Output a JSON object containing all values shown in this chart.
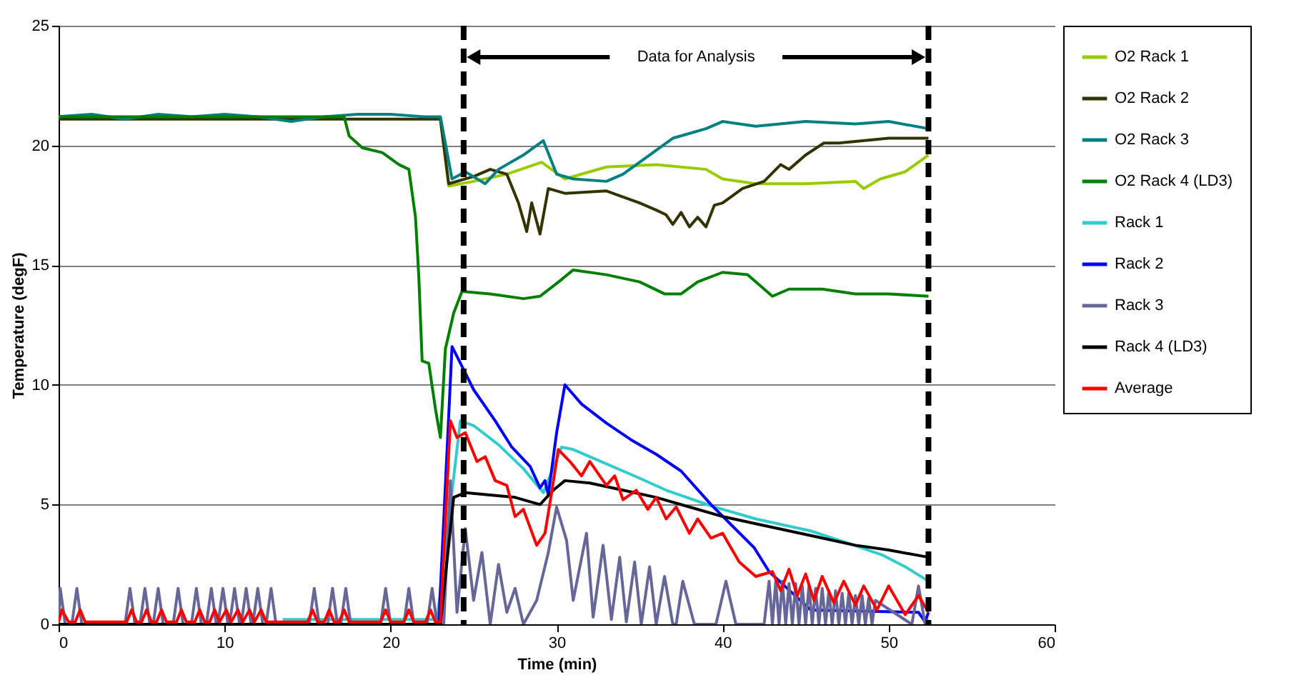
{
  "chart_data": {
    "type": "line",
    "xlabel": "Time (min)",
    "ylabel": "Temperature (degF)",
    "xlim": [
      0,
      60
    ],
    "xticks": [
      0,
      10,
      20,
      30,
      40,
      50,
      60
    ],
    "ylim": [
      0,
      25
    ],
    "yticks": [
      0,
      5,
      10,
      15,
      20,
      25
    ],
    "grid": "y",
    "legend": "right",
    "annotations": [
      "Data for Analysis"
    ],
    "ref_lines": [
      {
        "axis": "x",
        "value": 24.4,
        "color": "#000000",
        "line_style": "dashed"
      },
      {
        "axis": "x",
        "value": 52.4,
        "color": "#000000",
        "line_style": "dashed"
      }
    ],
    "series": [
      {
        "name": "O2 Rack 1",
        "color": "#99cc00",
        "x": [
          23,
          23.5,
          25,
          27,
          29.1,
          30.5,
          33,
          36,
          39,
          40,
          42,
          45,
          48,
          48.5,
          49.5,
          51,
          52.4
        ],
        "values": [
          21.1,
          18.3,
          18.5,
          18.8,
          19.3,
          18.6,
          19.1,
          19.2,
          19.0,
          18.6,
          18.4,
          18.4,
          18.5,
          18.2,
          18.6,
          18.9,
          19.6
        ]
      },
      {
        "name": "O2 Rack 2",
        "color": "#333300",
        "x": [
          0,
          5,
          10,
          15,
          20,
          23,
          23.5,
          25,
          26,
          27,
          27.7,
          28.2,
          28.5,
          29,
          29.5,
          30.5,
          33,
          35,
          36,
          36.6,
          37,
          37.5,
          38,
          38.5,
          39,
          39.5,
          40,
          41.2,
          42.5,
          43.5,
          44,
          45,
          46.1,
          47,
          50,
          52.4
        ],
        "values": [
          21.1,
          21.1,
          21.1,
          21.1,
          21.1,
          21.1,
          18.4,
          18.7,
          19.0,
          18.8,
          17.6,
          16.4,
          17.6,
          16.3,
          18.2,
          18.0,
          18.1,
          17.6,
          17.3,
          17.1,
          16.7,
          17.2,
          16.6,
          17.0,
          16.6,
          17.5,
          17.6,
          18.2,
          18.5,
          19.2,
          19.0,
          19.6,
          20.1,
          20.1,
          20.3,
          20.3
        ]
      },
      {
        "name": "O2 Rack 3",
        "color": "#008080",
        "x": [
          0,
          2,
          4,
          6,
          8,
          10,
          12,
          14,
          16,
          18,
          20,
          22,
          23,
          23.7,
          24.5,
          25.7,
          26.5,
          28,
          29.2,
          30,
          31,
          33,
          34,
          36,
          37,
          39,
          40,
          42,
          45,
          48,
          50,
          52.4
        ],
        "values": [
          21.2,
          21.3,
          21.1,
          21.3,
          21.2,
          21.3,
          21.2,
          21.0,
          21.2,
          21.3,
          21.3,
          21.2,
          21.2,
          18.6,
          18.9,
          18.4,
          19.0,
          19.6,
          20.2,
          18.8,
          18.6,
          18.5,
          18.8,
          19.8,
          20.3,
          20.7,
          21.0,
          20.8,
          21.0,
          20.9,
          21.0,
          20.7
        ]
      },
      {
        "name": "O2 Rack 4 (LD3)",
        "color": "#008000",
        "x": [
          0,
          5,
          10,
          15,
          17.2,
          17.5,
          18.3,
          19.5,
          20.5,
          21.1,
          21.5,
          21.7,
          21.9,
          22.3,
          22.7,
          23.0,
          23.3,
          23.8,
          24.3,
          26,
          28,
          29,
          30.3,
          31,
          33,
          35,
          36.5,
          37.5,
          38.5,
          40,
          41.5,
          43,
          44,
          46,
          48,
          50,
          52.4
        ],
        "values": [
          21.2,
          21.2,
          21.2,
          21.2,
          21.2,
          20.4,
          19.9,
          19.7,
          19.2,
          19.0,
          17.0,
          14.5,
          11.0,
          10.9,
          9.0,
          7.8,
          11.5,
          13.0,
          13.9,
          13.8,
          13.6,
          13.7,
          14.4,
          14.8,
          14.6,
          14.3,
          13.8,
          13.8,
          14.3,
          14.7,
          14.6,
          13.7,
          14.0,
          14.0,
          13.8,
          13.8,
          13.7
        ]
      },
      {
        "name": "Rack 1",
        "color": "#33cccc",
        "x": [
          13.5,
          18,
          22.8,
          24.2,
          25,
          26.5,
          28,
          29.2,
          30.3,
          31,
          33,
          35,
          36.6,
          39.5,
          42,
          45.3,
          47.5,
          49.6,
          51,
          52.4
        ],
        "values": [
          0.2,
          0.2,
          0.2,
          8.5,
          8.3,
          7.5,
          6.5,
          5.5,
          7.4,
          7.3,
          6.7,
          6.1,
          5.6,
          4.9,
          4.4,
          3.9,
          3.4,
          2.9,
          2.4,
          1.8
        ]
      },
      {
        "name": "Rack 2",
        "color": "#0000ff",
        "x": [
          22.9,
          23.7,
          24.5,
          25,
          26.3,
          27.3,
          28.4,
          29,
          29.3,
          29.5,
          30,
          30.5,
          31.5,
          33,
          34.5,
          36,
          37.5,
          39.3,
          41.9,
          42.8,
          45.3,
          51.8,
          52.2,
          52.4
        ],
        "values": [
          0.0,
          11.6,
          10.5,
          9.8,
          8.5,
          7.4,
          6.6,
          5.7,
          6.0,
          5.4,
          8.0,
          10.0,
          9.2,
          8.4,
          7.7,
          7.1,
          6.4,
          5.0,
          3.2,
          2.2,
          0.6,
          0.5,
          0.1,
          0.5
        ]
      },
      {
        "name": "Rack 3",
        "color": "#666699",
        "x": [
          0,
          0.1,
          0.4,
          0.8,
          1.1,
          1.4,
          4.0,
          4.3,
          4.6,
          4.9,
          5.2,
          5.5,
          5.7,
          6.0,
          6.3,
          6.9,
          7.2,
          7.5,
          8.0,
          8.3,
          8.6,
          8.9,
          9.2,
          9.5,
          9.6,
          9.9,
          10.2,
          10.3,
          10.6,
          10.9,
          11.0,
          11.3,
          11.6,
          11.7,
          12.0,
          12.3,
          12.5,
          12.8,
          13.1,
          15.1,
          15.4,
          15.7,
          16.2,
          16.5,
          16.8,
          17.0,
          17.3,
          17.6,
          19.4,
          19.7,
          20.0,
          20.8,
          21.1,
          21.4,
          22.2,
          22.5,
          22.8,
          23.2,
          23.6,
          24,
          24.5,
          25,
          25.5,
          26,
          26.5,
          27,
          27.5,
          28,
          28.8,
          29.5,
          30,
          30.6,
          31,
          31.8,
          32.2,
          32.8,
          33.3,
          33.8,
          34.2,
          34.7,
          35.1,
          35.6,
          36,
          36.5,
          37,
          37.2,
          37.6,
          38.3,
          39.6,
          40.2,
          40.8,
          42.5,
          42.8,
          43.0,
          43.2,
          43.4,
          43.6,
          43.8,
          44.0,
          44.2,
          44.4,
          44.6,
          44.8,
          45.0,
          45.2,
          45.4,
          45.6,
          45.8,
          46.0,
          46.2,
          46.4,
          46.6,
          46.8,
          47.0,
          47.2,
          47.4,
          47.6,
          47.8,
          48.0,
          48.2,
          48.4,
          48.6,
          48.8,
          49.0,
          49.2,
          51.4,
          51.8,
          52.2,
          52.4
        ],
        "values": [
          0,
          1.5,
          0,
          0,
          1.5,
          0,
          0,
          1.5,
          0,
          0,
          1.5,
          0,
          0,
          1.5,
          0,
          0,
          1.5,
          0,
          0,
          1.5,
          0,
          0,
          1.5,
          0,
          0,
          1.5,
          0,
          0,
          1.5,
          0,
          0,
          1.5,
          0,
          0,
          1.5,
          0,
          0,
          1.5,
          0,
          0,
          1.5,
          0,
          0,
          1.5,
          0,
          0,
          1.5,
          0,
          0,
          1.5,
          0,
          0,
          1.5,
          0,
          0,
          1.5,
          0,
          0,
          6.0,
          0.5,
          4.0,
          1.0,
          3.0,
          0,
          2.5,
          0.5,
          1.5,
          0,
          1.0,
          3.0,
          4.9,
          3.5,
          1.0,
          3.8,
          0.3,
          3.3,
          0.2,
          2.8,
          0.1,
          2.6,
          0,
          2.4,
          0,
          2.0,
          0,
          0,
          1.8,
          0,
          0,
          1.8,
          0,
          0,
          1.8,
          0,
          1.8,
          0,
          1.8,
          0,
          1.7,
          0,
          1.7,
          0,
          1.6,
          0,
          1.6,
          0,
          1.5,
          0,
          1.5,
          0,
          1.4,
          0,
          1.4,
          0,
          1.3,
          0,
          1.3,
          0,
          1.2,
          0,
          1.2,
          0,
          1.1,
          0,
          1.0,
          0,
          1.6,
          0,
          0.2
        ]
      },
      {
        "name": "Rack 4 (LD3)",
        "color": "#000000",
        "x": [
          0,
          10,
          20,
          23.0,
          23.8,
          24.5,
          26,
          27.5,
          29,
          29.8,
          30.5,
          32,
          34,
          36,
          38,
          40,
          42,
          44,
          46,
          48,
          50,
          52.4
        ],
        "values": [
          0.0,
          0.0,
          0.0,
          0.0,
          5.3,
          5.5,
          5.4,
          5.3,
          5.0,
          5.6,
          6.0,
          5.9,
          5.6,
          5.3,
          4.9,
          4.5,
          4.2,
          3.9,
          3.6,
          3.3,
          3.1,
          2.8
        ]
      },
      {
        "name": "Average",
        "color": "#ff0000",
        "x": [
          0,
          0.2,
          0.6,
          1.0,
          1.3,
          1.6,
          4.1,
          4.4,
          4.7,
          5.0,
          5.3,
          5.6,
          5.9,
          6.2,
          6.5,
          7.1,
          7.4,
          7.7,
          8.2,
          8.5,
          8.8,
          9.1,
          9.4,
          9.7,
          10.1,
          10.4,
          10.8,
          11.1,
          11.5,
          11.8,
          12.2,
          12.5,
          15.0,
          15.3,
          15.6,
          16.0,
          16.3,
          16.6,
          16.9,
          17.2,
          17.5,
          19.4,
          19.7,
          20.0,
          20.8,
          21.1,
          21.4,
          22.1,
          22.4,
          22.7,
          23.0,
          23.6,
          24,
          24.5,
          25.2,
          25.7,
          26.3,
          27,
          27.5,
          28,
          28.8,
          29.3,
          29.7,
          30.1,
          30.8,
          31.5,
          32,
          33,
          33.5,
          34,
          34.8,
          35.5,
          36,
          36.6,
          37.2,
          38,
          38.5,
          39.3,
          40,
          41,
          42,
          43,
          43.5,
          44,
          44.5,
          45,
          45.5,
          46,
          46.7,
          47.3,
          48,
          48.5,
          49.3,
          50,
          51,
          51.8,
          52.4
        ],
        "values": [
          0.1,
          0.6,
          0.1,
          0.1,
          0.6,
          0.1,
          0.1,
          0.6,
          0.1,
          0.1,
          0.6,
          0.1,
          0.1,
          0.6,
          0.1,
          0.1,
          0.6,
          0.1,
          0.1,
          0.6,
          0.1,
          0.1,
          0.6,
          0.1,
          0.6,
          0.1,
          0.6,
          0.1,
          0.6,
          0.1,
          0.6,
          0.1,
          0.1,
          0.6,
          0.1,
          0.1,
          0.6,
          0.1,
          0.1,
          0.6,
          0.1,
          0.1,
          0.6,
          0.1,
          0.1,
          0.6,
          0.1,
          0.1,
          0.6,
          0.1,
          0.1,
          8.5,
          7.8,
          8.0,
          6.8,
          7.0,
          6.0,
          5.8,
          4.5,
          4.8,
          3.3,
          3.8,
          5.5,
          7.3,
          6.8,
          6.2,
          6.8,
          5.8,
          6.2,
          5.2,
          5.6,
          4.8,
          5.3,
          4.4,
          4.9,
          3.8,
          4.4,
          3.6,
          3.8,
          2.6,
          2.0,
          2.2,
          1.4,
          2.3,
          1.2,
          2.1,
          1.0,
          2.0,
          0.9,
          1.8,
          0.8,
          1.6,
          0.6,
          1.6,
          0.4,
          1.2,
          0.5
        ]
      }
    ]
  }
}
